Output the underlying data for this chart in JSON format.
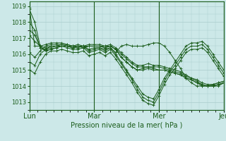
{
  "xlabel": "Pression niveau de la mer( hPa )",
  "yticks": [
    1013,
    1014,
    1015,
    1016,
    1017,
    1018,
    1019
  ],
  "xtick_labels": [
    "Lun",
    "Mar",
    "Mer",
    "Jeu"
  ],
  "xtick_positions": [
    0.0,
    0.333,
    0.667,
    1.0
  ],
  "xlim": [
    0,
    1.0
  ],
  "ylim": [
    1012.5,
    1019.3
  ],
  "bg_color": "#cce8e8",
  "grid_color": "#aacccc",
  "line_color": "#1a5c1a",
  "marker": "+",
  "line_width": 0.7,
  "markersize": 2.5,
  "series": [
    [
      1018.8,
      1018.0,
      1016.5,
      1016.2,
      1016.3,
      1016.4,
      1016.5,
      1016.5,
      1016.4,
      1016.5,
      1016.4,
      1016.5,
      1016.5,
      1016.5,
      1016.4,
      1016.5,
      1016.3,
      1015.8,
      1015.5,
      1015.2,
      1015.0,
      1015.0,
      1015.1,
      1015.0,
      1015.0,
      1015.0,
      1014.9,
      1014.8,
      1014.7,
      1014.5,
      1014.4,
      1014.2,
      1014.1,
      1014.0,
      1014.0,
      1014.1,
      1014.2
    ],
    [
      1018.0,
      1017.5,
      1016.4,
      1016.2,
      1016.3,
      1016.4,
      1016.5,
      1016.5,
      1016.4,
      1016.5,
      1016.4,
      1016.5,
      1016.5,
      1016.5,
      1016.4,
      1016.5,
      1016.3,
      1015.8,
      1015.5,
      1015.2,
      1015.0,
      1015.1,
      1015.2,
      1015.1,
      1015.0,
      1015.0,
      1014.9,
      1014.8,
      1014.7,
      1014.5,
      1014.4,
      1014.2,
      1014.0,
      1014.0,
      1014.1,
      1014.2,
      1014.3
    ],
    [
      1017.5,
      1017.2,
      1016.4,
      1016.3,
      1016.4,
      1016.5,
      1016.5,
      1016.5,
      1016.5,
      1016.5,
      1016.5,
      1016.5,
      1016.5,
      1016.5,
      1016.5,
      1016.5,
      1016.3,
      1016.0,
      1015.7,
      1015.4,
      1015.2,
      1015.2,
      1015.2,
      1015.2,
      1015.2,
      1015.1,
      1015.0,
      1014.9,
      1014.8,
      1014.6,
      1014.5,
      1014.3,
      1014.1,
      1014.0,
      1014.0,
      1014.1,
      1014.2
    ],
    [
      1017.2,
      1016.8,
      1016.5,
      1016.4,
      1016.5,
      1016.5,
      1016.6,
      1016.6,
      1016.5,
      1016.6,
      1016.5,
      1016.6,
      1016.6,
      1016.6,
      1016.5,
      1016.6,
      1016.4,
      1016.1,
      1015.8,
      1015.5,
      1015.3,
      1015.3,
      1015.4,
      1015.3,
      1015.3,
      1015.2,
      1015.1,
      1015.0,
      1014.9,
      1014.7,
      1014.5,
      1014.4,
      1014.2,
      1014.1,
      1014.1,
      1014.2,
      1014.3
    ],
    [
      1016.1,
      1015.8,
      1016.2,
      1016.5,
      1016.6,
      1016.6,
      1016.6,
      1016.5,
      1016.4,
      1016.4,
      1016.5,
      1016.2,
      1016.3,
      1016.4,
      1016.2,
      1016.4,
      1016.0,
      1015.5,
      1015.0,
      1014.5,
      1014.0,
      1013.5,
      1013.3,
      1013.2,
      1013.8,
      1014.5,
      1015.0,
      1015.5,
      1016.0,
      1016.5,
      1016.7,
      1016.7,
      1016.8,
      1016.5,
      1016.0,
      1015.5,
      1015.0
    ],
    [
      1015.5,
      1015.3,
      1016.0,
      1016.3,
      1016.5,
      1016.5,
      1016.5,
      1016.4,
      1016.3,
      1016.3,
      1016.4,
      1016.1,
      1016.2,
      1016.3,
      1016.1,
      1016.3,
      1015.9,
      1015.4,
      1014.9,
      1014.4,
      1013.8,
      1013.3,
      1013.1,
      1013.0,
      1013.6,
      1014.3,
      1014.9,
      1015.3,
      1015.8,
      1016.3,
      1016.5,
      1016.5,
      1016.6,
      1016.3,
      1015.8,
      1015.3,
      1014.8
    ],
    [
      1015.0,
      1014.8,
      1015.5,
      1016.0,
      1016.2,
      1016.2,
      1016.3,
      1016.2,
      1016.1,
      1016.1,
      1016.2,
      1015.9,
      1016.0,
      1016.1,
      1015.9,
      1016.1,
      1015.7,
      1015.2,
      1014.7,
      1014.2,
      1013.6,
      1013.1,
      1012.9,
      1012.8,
      1013.4,
      1014.1,
      1014.7,
      1015.1,
      1015.6,
      1016.1,
      1016.3,
      1016.3,
      1016.4,
      1016.1,
      1015.6,
      1015.1,
      1014.6
    ],
    [
      1018.9,
      1016.5,
      1016.5,
      1016.6,
      1016.7,
      1016.7,
      1016.7,
      1016.6,
      1016.5,
      1016.5,
      1016.5,
      1016.3,
      1016.4,
      1016.4,
      1016.3,
      1016.4,
      1016.1,
      1016.5,
      1016.6,
      1016.5,
      1016.5,
      1016.5,
      1016.6,
      1016.7,
      1016.7,
      1016.5,
      1016.1,
      1015.6,
      1015.1,
      1014.5,
      1014.2,
      1014.0,
      1014.0,
      1014.0,
      1014.0,
      1014.0,
      1014.2
    ]
  ]
}
